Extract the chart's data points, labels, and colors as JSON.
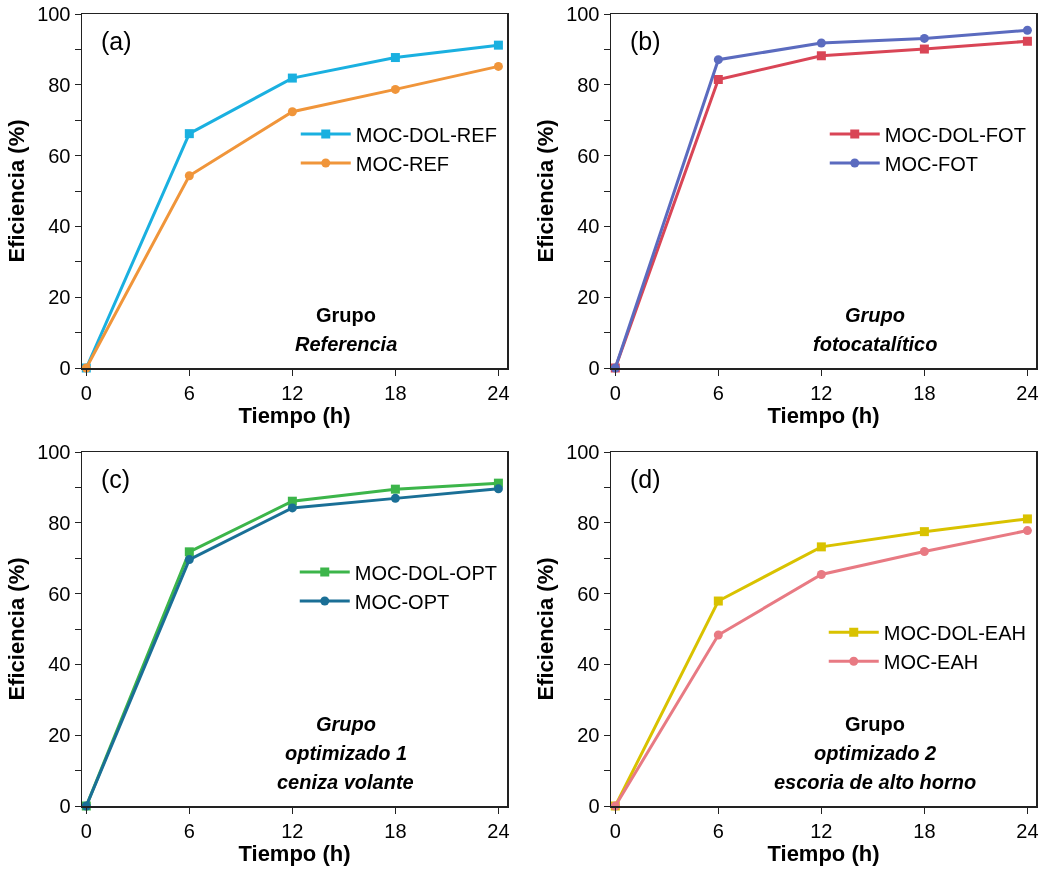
{
  "chart_data": [
    {
      "type": "line",
      "xlabel": "Tiempo (h)",
      "ylabel": "Eficiencia (%)",
      "x": [
        0,
        6,
        12,
        18,
        24
      ],
      "xlim": [
        -0.25,
        24.5
      ],
      "xticks": [
        0,
        6,
        12,
        18,
        24
      ],
      "ylim": [
        0,
        100
      ],
      "yticks": [
        0,
        {
          "value": 10,
          "label": null
        },
        20,
        {
          "value": 30,
          "label": null
        },
        40,
        {
          "value": 50,
          "label": null
        },
        60,
        {
          "value": 70,
          "label": null
        },
        80,
        {
          "value": 90,
          "label": null
        },
        100
      ],
      "grid": false,
      "legend": "right",
      "line_style": "solid",
      "annotations": [
        "(a)",
        "Grupo",
        "Referencia"
      ],
      "series": [
        {
          "name": "MOC-DOL-REF",
          "color": "#1ab0e0",
          "marker": "square",
          "values": [
            0,
            66.2,
            81.9,
            87.7,
            91.2
          ]
        },
        {
          "name": "MOC-REF",
          "color": "#f0953a",
          "marker": "circle",
          "values": [
            0,
            54.3,
            72.4,
            78.7,
            85.2
          ]
        }
      ]
    },
    {
      "type": "line",
      "xlabel": "Tiempo (h)",
      "ylabel": "Eficiencia (%)",
      "x": [
        0,
        6,
        12,
        18,
        24
      ],
      "xlim": [
        -0.25,
        24.5
      ],
      "xticks": [
        0,
        6,
        12,
        18,
        24
      ],
      "ylim": [
        0,
        100
      ],
      "yticks": [
        0,
        {
          "value": 10,
          "label": null
        },
        20,
        {
          "value": 30,
          "label": null
        },
        40,
        {
          "value": 50,
          "label": null
        },
        60,
        {
          "value": 70,
          "label": null
        },
        80,
        {
          "value": 90,
          "label": null
        },
        100
      ],
      "grid": false,
      "legend": "right",
      "line_style": "solid",
      "annotations": [
        "(b)",
        "Grupo",
        "fotocatalítico"
      ],
      "series": [
        {
          "name": "MOC-DOL-FOT",
          "color": "#d94556",
          "marker": "square",
          "values": [
            0,
            81.5,
            88.2,
            90.1,
            92.3
          ]
        },
        {
          "name": "MOC-FOT",
          "color": "#5b6bbf",
          "marker": "circle",
          "values": [
            0,
            87.1,
            91.8,
            93.1,
            95.4
          ]
        }
      ]
    },
    {
      "type": "line",
      "xlabel": "Tiempo (h)",
      "ylabel": "Eficiencia (%)",
      "x": [
        0,
        6,
        12,
        18,
        24
      ],
      "xlim": [
        -0.25,
        24.5
      ],
      "xticks": [
        0,
        6,
        12,
        18,
        24
      ],
      "ylim": [
        0,
        100
      ],
      "yticks": [
        0,
        {
          "value": 10,
          "label": null
        },
        20,
        {
          "value": 30,
          "label": null
        },
        40,
        {
          "value": 50,
          "label": null
        },
        60,
        {
          "value": 70,
          "label": null
        },
        80,
        {
          "value": 90,
          "label": null
        },
        100
      ],
      "grid": false,
      "legend": "right",
      "line_style": "solid",
      "annotations": [
        "(c)",
        "Grupo",
        "optimizado 1",
        "ceniza volante"
      ],
      "series": [
        {
          "name": "MOC-DOL-OPT",
          "color": "#3cb54a",
          "marker": "square",
          "values": [
            0,
            71.8,
            86.1,
            89.5,
            91.2
          ]
        },
        {
          "name": "MOC-OPT",
          "color": "#1a6f96",
          "marker": "circle",
          "values": [
            0,
            69.6,
            84.2,
            86.9,
            89.6
          ]
        }
      ]
    },
    {
      "type": "line",
      "xlabel": "Tiempo (h)",
      "ylabel": "Eficiencia (%)",
      "x": [
        0,
        6,
        12,
        18,
        24
      ],
      "xlim": [
        -0.25,
        24.5
      ],
      "xticks": [
        0,
        6,
        12,
        18,
        24
      ],
      "ylim": [
        0,
        100
      ],
      "yticks": [
        0,
        {
          "value": 10,
          "label": null
        },
        20,
        {
          "value": 30,
          "label": null
        },
        40,
        {
          "value": 50,
          "label": null
        },
        60,
        {
          "value": 70,
          "label": null
        },
        80,
        {
          "value": 90,
          "label": null
        },
        100
      ],
      "grid": false,
      "legend": "bottom right",
      "line_style": "solid",
      "annotations": [
        "(d)",
        "Grupo",
        "optimizado 2",
        "escoria de alto horno"
      ],
      "series": [
        {
          "name": "MOC-DOL-EAH",
          "color": "#d9c200",
          "marker": "square",
          "values": [
            0,
            57.9,
            73.2,
            77.5,
            81.1
          ]
        },
        {
          "name": "MOC-EAH",
          "color": "#e87a83",
          "marker": "circle",
          "values": [
            0,
            48.3,
            65.4,
            71.9,
            77.8
          ]
        }
      ]
    }
  ]
}
